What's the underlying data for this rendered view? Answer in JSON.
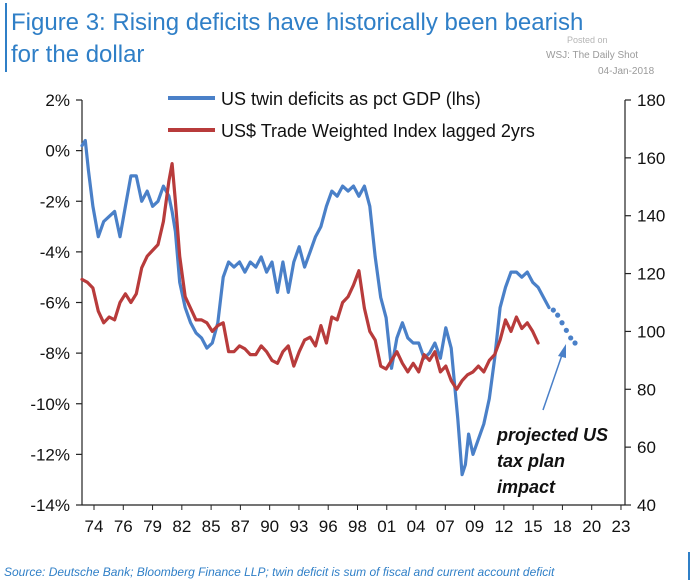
{
  "header": {
    "title_line1": "Figure 3: Rising deficits have historically been bearish",
    "title_line2": "for the dollar",
    "watermark_posted": "Posted on",
    "watermark_source": "WSJ: The Daily Shot",
    "watermark_date": "04-Jan-2018"
  },
  "footer": {
    "source": "Source: Deutsche Bank; Bloomberg Finance LLP; twin deficit is sum of fiscal and current account deficit"
  },
  "colors": {
    "title": "#2f7fc7",
    "blue_series": "#4a80c8",
    "red_series": "#b83b3b",
    "axis": "#222222",
    "annotation_arrow": "#4a80c8"
  },
  "chart_data": {
    "type": "line",
    "title": "Figure 3: Rising deficits have historically been bearish for the dollar",
    "xlabel": "",
    "ylabel_left": "",
    "ylabel_right": "",
    "x_ticks": [
      "74",
      "76",
      "79",
      "82",
      "85",
      "87",
      "90",
      "93",
      "96",
      "98",
      "01",
      "04",
      "07",
      "09",
      "12",
      "15",
      "18",
      "20",
      "23"
    ],
    "x_range": [
      1974,
      2024
    ],
    "y_left_ticks": [
      "2%",
      "0%",
      "-2%",
      "-4%",
      "-6%",
      "-8%",
      "-10%",
      "-12%",
      "-14%"
    ],
    "y_left_range": [
      -14,
      2
    ],
    "y_right_ticks": [
      "180",
      "160",
      "140",
      "120",
      "100",
      "80",
      "60",
      "40"
    ],
    "y_right_range": [
      40,
      180
    ],
    "legend_position": "top",
    "annotation": "projected US tax plan impact",
    "annotation_lines": [
      "projected US",
      "tax plan",
      "impact"
    ],
    "series": [
      {
        "name": "US twin deficits as pct GDP (lhs)",
        "axis": "left",
        "x": [
          1974.0,
          1974.3,
          1974.6,
          1975.0,
          1975.5,
          1976.0,
          1976.5,
          1977.0,
          1977.5,
          1978.0,
          1978.5,
          1979.0,
          1979.5,
          1980.0,
          1980.5,
          1981.0,
          1981.5,
          1982.0,
          1982.3,
          1982.6,
          1983.0,
          1983.5,
          1984.0,
          1984.5,
          1985.0,
          1985.5,
          1986.0,
          1986.5,
          1987.0,
          1987.5,
          1988.0,
          1988.5,
          1989.0,
          1989.5,
          1990.0,
          1990.5,
          1991.0,
          1991.5,
          1992.0,
          1992.5,
          1993.0,
          1993.5,
          1994.0,
          1994.5,
          1995.0,
          1995.5,
          1996.0,
          1996.5,
          1997.0,
          1997.5,
          1998.0,
          1998.5,
          1999.0,
          1999.5,
          2000.0,
          2000.5,
          2001.0,
          2001.5,
          2002.0,
          2002.5,
          2003.0,
          2003.5,
          2004.0,
          2004.5,
          2005.0,
          2005.5,
          2006.0,
          2006.5,
          2007.0,
          2007.5,
          2008.0,
          2008.3,
          2008.6,
          2009.0,
          2009.3,
          2009.6,
          2010.0,
          2010.5,
          2011.0,
          2011.5,
          2012.0,
          2012.5,
          2013.0,
          2013.5,
          2014.0,
          2014.5,
          2015.0,
          2015.5,
          2016.0,
          2016.5,
          2017.0
        ],
        "values": [
          0.2,
          0.4,
          -0.8,
          -2.2,
          -3.4,
          -2.8,
          -2.6,
          -2.4,
          -3.4,
          -2.2,
          -1.0,
          -1.0,
          -2.0,
          -1.6,
          -2.2,
          -2.0,
          -1.4,
          -1.8,
          -2.4,
          -3.2,
          -5.2,
          -6.2,
          -6.8,
          -7.2,
          -7.4,
          -7.8,
          -7.6,
          -6.8,
          -5.0,
          -4.4,
          -4.6,
          -4.4,
          -4.8,
          -4.4,
          -4.6,
          -4.2,
          -4.8,
          -4.4,
          -5.6,
          -4.4,
          -5.6,
          -4.4,
          -3.8,
          -4.6,
          -4.0,
          -3.4,
          -3.0,
          -2.2,
          -1.6,
          -1.8,
          -1.4,
          -1.6,
          -1.4,
          -1.8,
          -1.4,
          -2.2,
          -4.2,
          -5.8,
          -6.6,
          -8.6,
          -7.4,
          -6.8,
          -7.4,
          -7.6,
          -7.6,
          -8.2,
          -8.0,
          -7.6,
          -8.2,
          -7.0,
          -7.8,
          -9.2,
          -10.6,
          -12.8,
          -12.4,
          -11.2,
          -12.0,
          -11.4,
          -10.8,
          -9.8,
          -8.2,
          -6.2,
          -5.4,
          -4.8,
          -4.8,
          -5.0,
          -4.8,
          -5.2,
          -5.4,
          -5.8,
          -6.2
        ]
      },
      {
        "name": "US twin deficits projection",
        "axis": "left",
        "style": "dotted",
        "x": [
          2017.0,
          2017.4,
          2017.8,
          2018.2,
          2018.6,
          2019.0,
          2019.4
        ],
        "values": [
          -6.2,
          -6.3,
          -6.5,
          -6.8,
          -7.1,
          -7.4,
          -7.6
        ]
      },
      {
        "name": "US$ Trade Weighted Index lagged 2yrs",
        "axis": "right",
        "x": [
          1974.0,
          1974.5,
          1975.0,
          1975.5,
          1976.0,
          1976.5,
          1977.0,
          1977.5,
          1978.0,
          1978.5,
          1979.0,
          1979.5,
          1980.0,
          1980.5,
          1981.0,
          1981.5,
          1982.0,
          1982.3,
          1982.6,
          1983.0,
          1983.5,
          1984.0,
          1984.5,
          1985.0,
          1985.5,
          1986.0,
          1986.5,
          1987.0,
          1987.5,
          1988.0,
          1988.5,
          1989.0,
          1989.5,
          1990.0,
          1990.5,
          1991.0,
          1991.5,
          1992.0,
          1992.5,
          1993.0,
          1993.5,
          1994.0,
          1994.5,
          1995.0,
          1995.5,
          1996.0,
          1996.5,
          1997.0,
          1997.5,
          1998.0,
          1998.5,
          1999.0,
          1999.5,
          2000.0,
          2000.5,
          2001.0,
          2001.5,
          2002.0,
          2002.5,
          2003.0,
          2003.5,
          2004.0,
          2004.5,
          2005.0,
          2005.5,
          2006.0,
          2006.5,
          2007.0,
          2007.5,
          2008.0,
          2008.5,
          2009.0,
          2009.5,
          2010.0,
          2010.5,
          2011.0,
          2011.5,
          2012.0,
          2012.5,
          2013.0,
          2013.5,
          2014.0,
          2014.5,
          2015.0,
          2015.5,
          2016.0
        ],
        "values": [
          118,
          117,
          115,
          107,
          103,
          105,
          104,
          110,
          113,
          110,
          113,
          122,
          126,
          128,
          130,
          138,
          152,
          158,
          145,
          126,
          112,
          108,
          104,
          104,
          103,
          100,
          102,
          103,
          93,
          93,
          95,
          94,
          92,
          92,
          95,
          93,
          90,
          89,
          93,
          95,
          88,
          93,
          97,
          98,
          95,
          102,
          96,
          105,
          104,
          110,
          112,
          116,
          121,
          108,
          100,
          97,
          88,
          87,
          90,
          93,
          89,
          86,
          89,
          86,
          92,
          90,
          93,
          86,
          88,
          83,
          80,
          83,
          85,
          86,
          88,
          86,
          90,
          92,
          97,
          104,
          100,
          105,
          101,
          103,
          100,
          96
        ]
      }
    ]
  }
}
